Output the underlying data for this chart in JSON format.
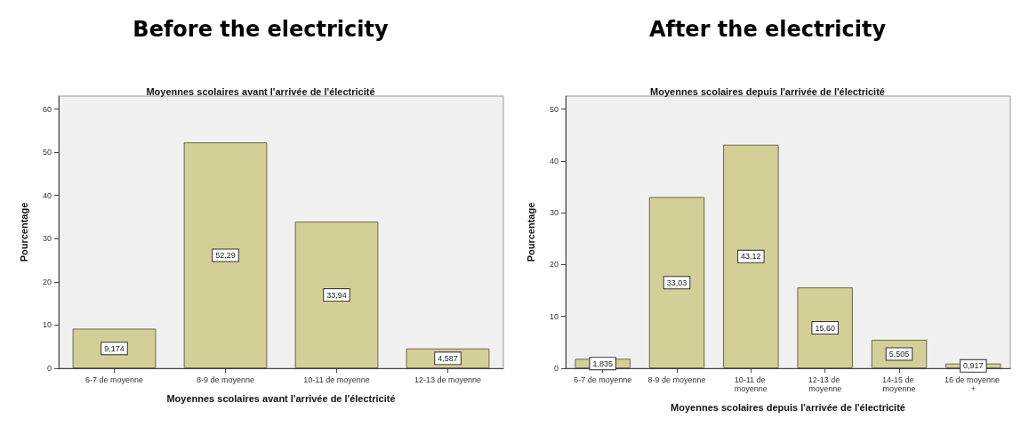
{
  "chart_data": [
    {
      "type": "bar",
      "title": "Before the electricity",
      "subtitle": "Moyennes scolaires avant l'arrivée de l'électricité",
      "xlabel": "Moyennes scolaires avant l'arrivée de l'électricité",
      "ylabel": "Pourcentage",
      "categories": [
        "6-7 de moyenne",
        "8-9 de moyenne",
        "10-11 de moyenne",
        "12-13 de moyenne"
      ],
      "values": [
        9.174,
        52.29,
        33.94,
        4.587
      ],
      "value_labels": [
        "9,174",
        "52,29",
        "33,94",
        "4,587"
      ],
      "color": "#d3cf97",
      "ylim": [
        0,
        63
      ],
      "yticks": [
        0,
        10,
        20,
        30,
        40,
        50,
        60
      ]
    },
    {
      "type": "bar",
      "title": "After the electricity",
      "subtitle": "Moyennes scolaires depuis l'arrivée de l'électricité",
      "xlabel": "Moyennes scolaires depuis l'arrivée de l'électricité",
      "ylabel": "Pourcentage",
      "categories": [
        "6-7 de moyenne",
        "8-9 de moyenne",
        "10-11 de moyenne",
        "12-13 de moyenne",
        "14-15 de moyenne",
        "16 de moyenne +"
      ],
      "values": [
        1.835,
        33.03,
        43.12,
        15.6,
        5.505,
        0.917
      ],
      "value_labels": [
        "1,835",
        "33,03",
        "43,12",
        "15,60",
        "5,505",
        "0,917"
      ],
      "color": "#d3cf97",
      "ylim": [
        0,
        52.5
      ],
      "yticks": [
        0,
        10,
        20,
        30,
        40,
        50
      ]
    }
  ]
}
